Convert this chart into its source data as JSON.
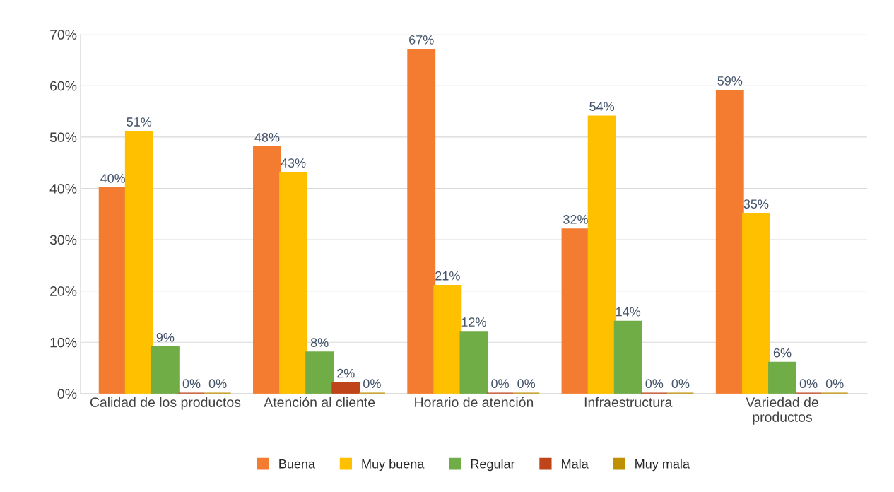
{
  "chart_data": {
    "type": "bar",
    "categories": [
      "Calidad de los productos",
      "Atención al cliente",
      "Horario de atención",
      "Infraestructura",
      "Variedad de productos"
    ],
    "series": [
      {
        "name": "Buena",
        "color": "#f47c30",
        "values": [
          40,
          48,
          67,
          32,
          59
        ],
        "value_labels": [
          "40%",
          "48%",
          "67%",
          "32%",
          "59%"
        ]
      },
      {
        "name": "Muy buena",
        "color": "#ffc000",
        "values": [
          51,
          43,
          21,
          54,
          35
        ],
        "value_labels": [
          "51%",
          "43%",
          "21%",
          "54%",
          "35%"
        ]
      },
      {
        "name": "Regular",
        "color": "#70ad47",
        "values": [
          9,
          8,
          12,
          14,
          6
        ],
        "value_labels": [
          "9%",
          "8%",
          "12%",
          "14%",
          "6%"
        ]
      },
      {
        "name": "Mala",
        "color": "#c0441a",
        "values": [
          0,
          2,
          0,
          0,
          0
        ],
        "value_labels": [
          "0%",
          "2%",
          "0%",
          "0%",
          "0%"
        ]
      },
      {
        "name": "Muy mala",
        "color": "#bf9000",
        "values": [
          0,
          0,
          0,
          0,
          0
        ],
        "value_labels": [
          "0%",
          "0%",
          "0%",
          "0%",
          "0%"
        ]
      }
    ],
    "ylim": [
      0,
      70
    ],
    "yticks": [
      {
        "value": 0,
        "label": "0%"
      },
      {
        "value": 10,
        "label": "10%"
      },
      {
        "value": 20,
        "label": "20%"
      },
      {
        "value": 30,
        "label": "30%"
      },
      {
        "value": 40,
        "label": "40%"
      },
      {
        "value": 50,
        "label": "50%"
      },
      {
        "value": 60,
        "label": "60%"
      },
      {
        "value": 70,
        "label": "70%"
      }
    ],
    "grid": "y",
    "legend": "bottom"
  }
}
